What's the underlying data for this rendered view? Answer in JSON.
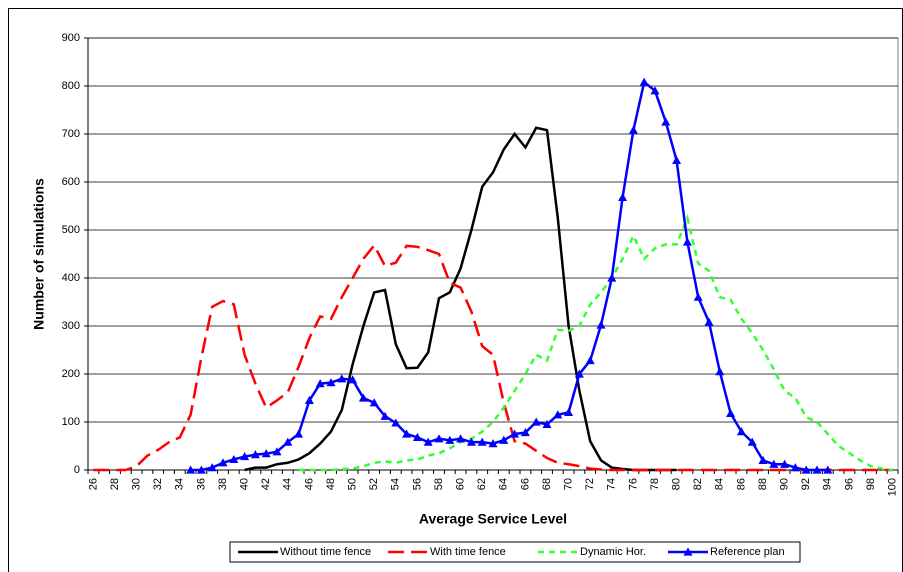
{
  "chart_data": {
    "type": "line",
    "xlabel": "Average Service Level",
    "ylabel": "Number of simulations",
    "categories": [
      "26",
      null,
      "28",
      null,
      "30",
      null,
      "32",
      null,
      "34",
      null,
      "36",
      null,
      "38",
      null,
      "40",
      null,
      "42",
      null,
      "44",
      null,
      "46",
      null,
      "48",
      null,
      "50",
      null,
      "52",
      null,
      "54",
      null,
      "56",
      null,
      "58",
      null,
      "60",
      null,
      "62",
      null,
      "64",
      null,
      "66",
      null,
      "68",
      null,
      "70",
      null,
      "72",
      null,
      "74",
      null,
      "76",
      null,
      "78",
      null,
      "80",
      null,
      "82",
      null,
      "84",
      null,
      "86",
      null,
      "88",
      null,
      "90",
      null,
      "92",
      null,
      "94",
      null,
      "96",
      null,
      "98",
      null,
      "100"
    ],
    "ylim": [
      0,
      900
    ],
    "yticks": [
      0,
      100,
      200,
      300,
      400,
      500,
      600,
      700,
      800,
      900
    ],
    "grid": true,
    "legend": "bottom",
    "series": [
      {
        "name": "Without time fence",
        "color": "#000000",
        "dash": "none",
        "marker": "none",
        "values": [
          null,
          null,
          null,
          null,
          null,
          null,
          null,
          null,
          null,
          null,
          null,
          null,
          null,
          null,
          0,
          5,
          5,
          12,
          15,
          22,
          35,
          55,
          80,
          125,
          220,
          300,
          370,
          375,
          262,
          212,
          213,
          245,
          358,
          370,
          420,
          500,
          590,
          620,
          668,
          700,
          672,
          713,
          708,
          525,
          300,
          165,
          60,
          20,
          5,
          2,
          0,
          0,
          0,
          0,
          0,
          null,
          null,
          null,
          null,
          null,
          null,
          null,
          null,
          null,
          null,
          null,
          null,
          null,
          null,
          null,
          null,
          null,
          null,
          null,
          null
        ]
      },
      {
        "name": "With time fence",
        "color": "#ff0000",
        "dash": "16,7",
        "marker": "none",
        "values": [
          0,
          0,
          0,
          0,
          8,
          30,
          42,
          58,
          68,
          115,
          235,
          340,
          352,
          345,
          240,
          180,
          130,
          145,
          162,
          215,
          275,
          320,
          315,
          360,
          400,
          440,
          468,
          425,
          432,
          467,
          465,
          458,
          450,
          390,
          380,
          330,
          258,
          240,
          140,
          60,
          55,
          40,
          25,
          15,
          12,
          8,
          3,
          1,
          0,
          0,
          0,
          0,
          0,
          0,
          0,
          0,
          0,
          0,
          0,
          0,
          0,
          0,
          0,
          0,
          0,
          0,
          0,
          0,
          0,
          0,
          0,
          0,
          0,
          0,
          0
        ]
      },
      {
        "name": "Dynamic Hor.",
        "color": "#33ff33",
        "dash": "6,5",
        "marker": "none",
        "values": [
          null,
          null,
          null,
          null,
          null,
          null,
          null,
          null,
          null,
          null,
          null,
          null,
          null,
          null,
          null,
          null,
          null,
          null,
          null,
          0,
          0,
          0,
          0,
          2,
          3,
          8,
          15,
          18,
          15,
          20,
          22,
          30,
          35,
          45,
          58,
          65,
          80,
          100,
          130,
          165,
          200,
          240,
          228,
          292,
          290,
          300,
          345,
          370,
          400,
          440,
          488,
          440,
          462,
          470,
          470,
          525,
          430,
          415,
          360,
          355,
          315,
          285,
          250,
          210,
          165,
          150,
          110,
          100,
          75,
          50,
          35,
          20,
          8,
          3,
          0
        ]
      },
      {
        "name": "Reference plan",
        "color": "#0000ff",
        "dash": "none",
        "marker": "triangle",
        "values": [
          null,
          null,
          null,
          null,
          null,
          null,
          null,
          null,
          null,
          0,
          0,
          5,
          15,
          22,
          28,
          32,
          34,
          38,
          58,
          75,
          145,
          180,
          182,
          190,
          188,
          150,
          140,
          112,
          98,
          75,
          68,
          58,
          65,
          62,
          65,
          58,
          58,
          55,
          62,
          75,
          78,
          100,
          95,
          115,
          120,
          200,
          228,
          302,
          400,
          568,
          708,
          808,
          790,
          725,
          645,
          475,
          360,
          308,
          205,
          118,
          80,
          58,
          20,
          12,
          12,
          5,
          0,
          0,
          0,
          null,
          null,
          null,
          null,
          null,
          null
        ]
      }
    ]
  }
}
